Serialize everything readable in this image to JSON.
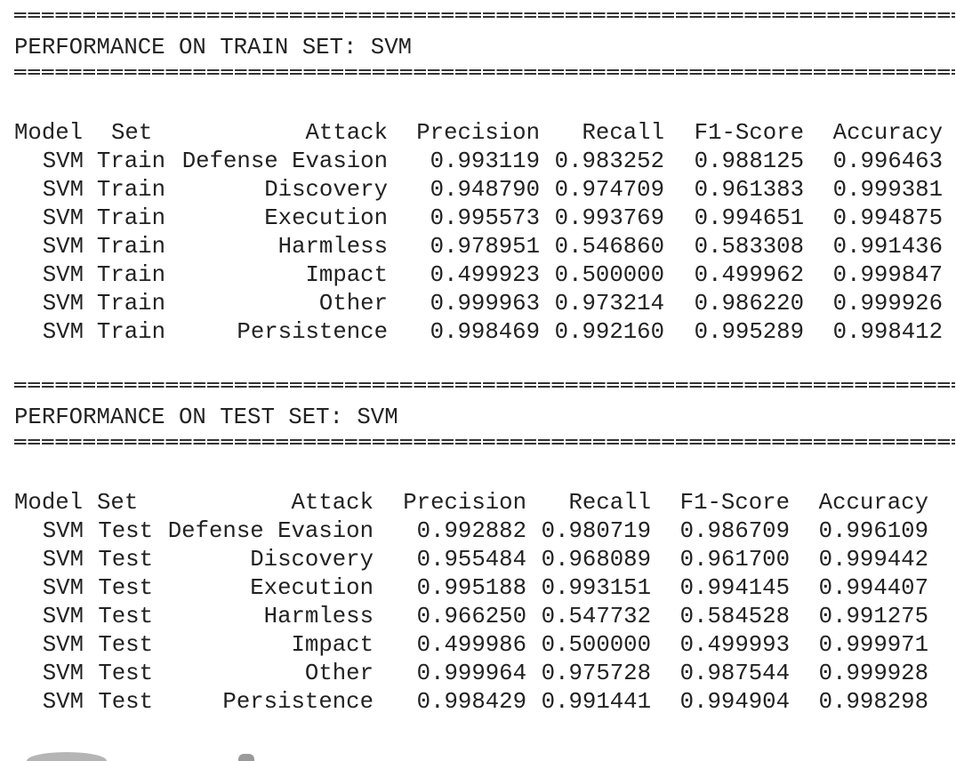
{
  "train": {
    "heading": "PERFORMANCE ON TRAIN SET: SVM",
    "columns": [
      "Model",
      "Set",
      "Attack",
      "Precision",
      "Recall",
      "F1-Score",
      "Accuracy"
    ],
    "rows": [
      [
        "SVM",
        "Train",
        "Defense Evasion",
        "0.993119",
        "0.983252",
        "0.988125",
        "0.996463"
      ],
      [
        "SVM",
        "Train",
        "Discovery",
        "0.948790",
        "0.974709",
        "0.961383",
        "0.999381"
      ],
      [
        "SVM",
        "Train",
        "Execution",
        "0.995573",
        "0.993769",
        "0.994651",
        "0.994875"
      ],
      [
        "SVM",
        "Train",
        "Harmless",
        "0.978951",
        "0.546860",
        "0.583308",
        "0.991436"
      ],
      [
        "SVM",
        "Train",
        "Impact",
        "0.499923",
        "0.500000",
        "0.499962",
        "0.999847"
      ],
      [
        "SVM",
        "Train",
        "Other",
        "0.999963",
        "0.973214",
        "0.986220",
        "0.999926"
      ],
      [
        "SVM",
        "Train",
        "Persistence",
        "0.998469",
        "0.992160",
        "0.995289",
        "0.998412"
      ]
    ]
  },
  "test": {
    "heading": "PERFORMANCE ON TEST SET: SVM",
    "columns": [
      "Model",
      "Set",
      "Attack",
      "Precision",
      "Recall",
      "F1-Score",
      "Accuracy"
    ],
    "rows": [
      [
        "SVM",
        "Test",
        "Defense Evasion",
        "0.992882",
        "0.980719",
        "0.986709",
        "0.996109"
      ],
      [
        "SVM",
        "Test",
        "Discovery",
        "0.955484",
        "0.968089",
        "0.961700",
        "0.999442"
      ],
      [
        "SVM",
        "Test",
        "Execution",
        "0.995188",
        "0.993151",
        "0.994145",
        "0.994407"
      ],
      [
        "SVM",
        "Test",
        "Harmless",
        "0.966250",
        "0.547732",
        "0.584528",
        "0.991275"
      ],
      [
        "SVM",
        "Test",
        "Impact",
        "0.499986",
        "0.500000",
        "0.499993",
        "0.999971"
      ],
      [
        "SVM",
        "Test",
        "Other",
        "0.999964",
        "0.975728",
        "0.987544",
        "0.999928"
      ],
      [
        "SVM",
        "Test",
        "Persistence",
        "0.998429",
        "0.991441",
        "0.994904",
        "0.998298"
      ]
    ]
  }
}
